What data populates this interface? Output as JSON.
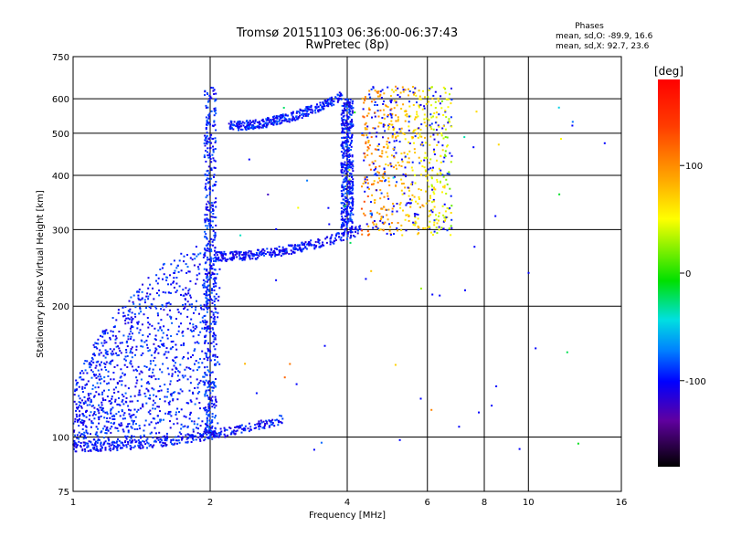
{
  "chart_data": {
    "type": "scatter",
    "title": "Tromsø 20151103 06:36:00-06:37:43",
    "subtitle": "RwPretec (8p)",
    "xlabel": "Frequency [MHz]",
    "ylabel": "Stationary phase Virtual Height [km]",
    "x_scale": "log",
    "y_scale": "log",
    "xlim": [
      1,
      16
    ],
    "ylim": [
      75,
      750
    ],
    "x_ticks": [
      "1",
      "2",
      "4",
      "6",
      "8",
      "10",
      "16"
    ],
    "y_ticks": [
      "75",
      "100",
      "200",
      "300",
      "400",
      "500",
      "600",
      "750"
    ],
    "grid": true,
    "phases_box": {
      "title": "Phases",
      "line1": "mean, sd,O: -89.9, 16.6",
      "line2": "mean, sd,X:  92.7, 23.6"
    },
    "colorbar": {
      "label": "[deg]",
      "ticks": [
        "100",
        "0",
        "-100"
      ],
      "tick_values": [
        100,
        0,
        -100
      ],
      "range": [
        -180,
        180
      ]
    },
    "series": [
      {
        "description_components": [
          {
            "kind": "band",
            "x": [
              1.0,
              2.1
            ],
            "height_from": [
              95,
              100
            ],
            "height_to": [
              220,
              300
            ],
            "phase": -95
          },
          {
            "kind": "column",
            "x": 2.0,
            "height": [
              100,
              640
            ],
            "phase": -95
          },
          {
            "kind": "trace",
            "x": [
              2.05,
              4.3
            ],
            "height": [
              260,
              300
            ],
            "phase": -100
          },
          {
            "kind": "trace",
            "x": [
              2.2,
              3.9
            ],
            "height": [
              520,
              610
            ],
            "phase": -95
          },
          {
            "kind": "column",
            "x": 4.0,
            "height": [
              300,
              600
            ],
            "phase": -95
          },
          {
            "kind": "cloud",
            "x": [
              4.3,
              6.8
            ],
            "height": [
              290,
              640
            ],
            "phase": 60
          },
          {
            "kind": "trace",
            "x": [
              1.0,
              2.9
            ],
            "height": [
              95,
              110
            ],
            "phase": -100
          }
        ]
      }
    ]
  }
}
